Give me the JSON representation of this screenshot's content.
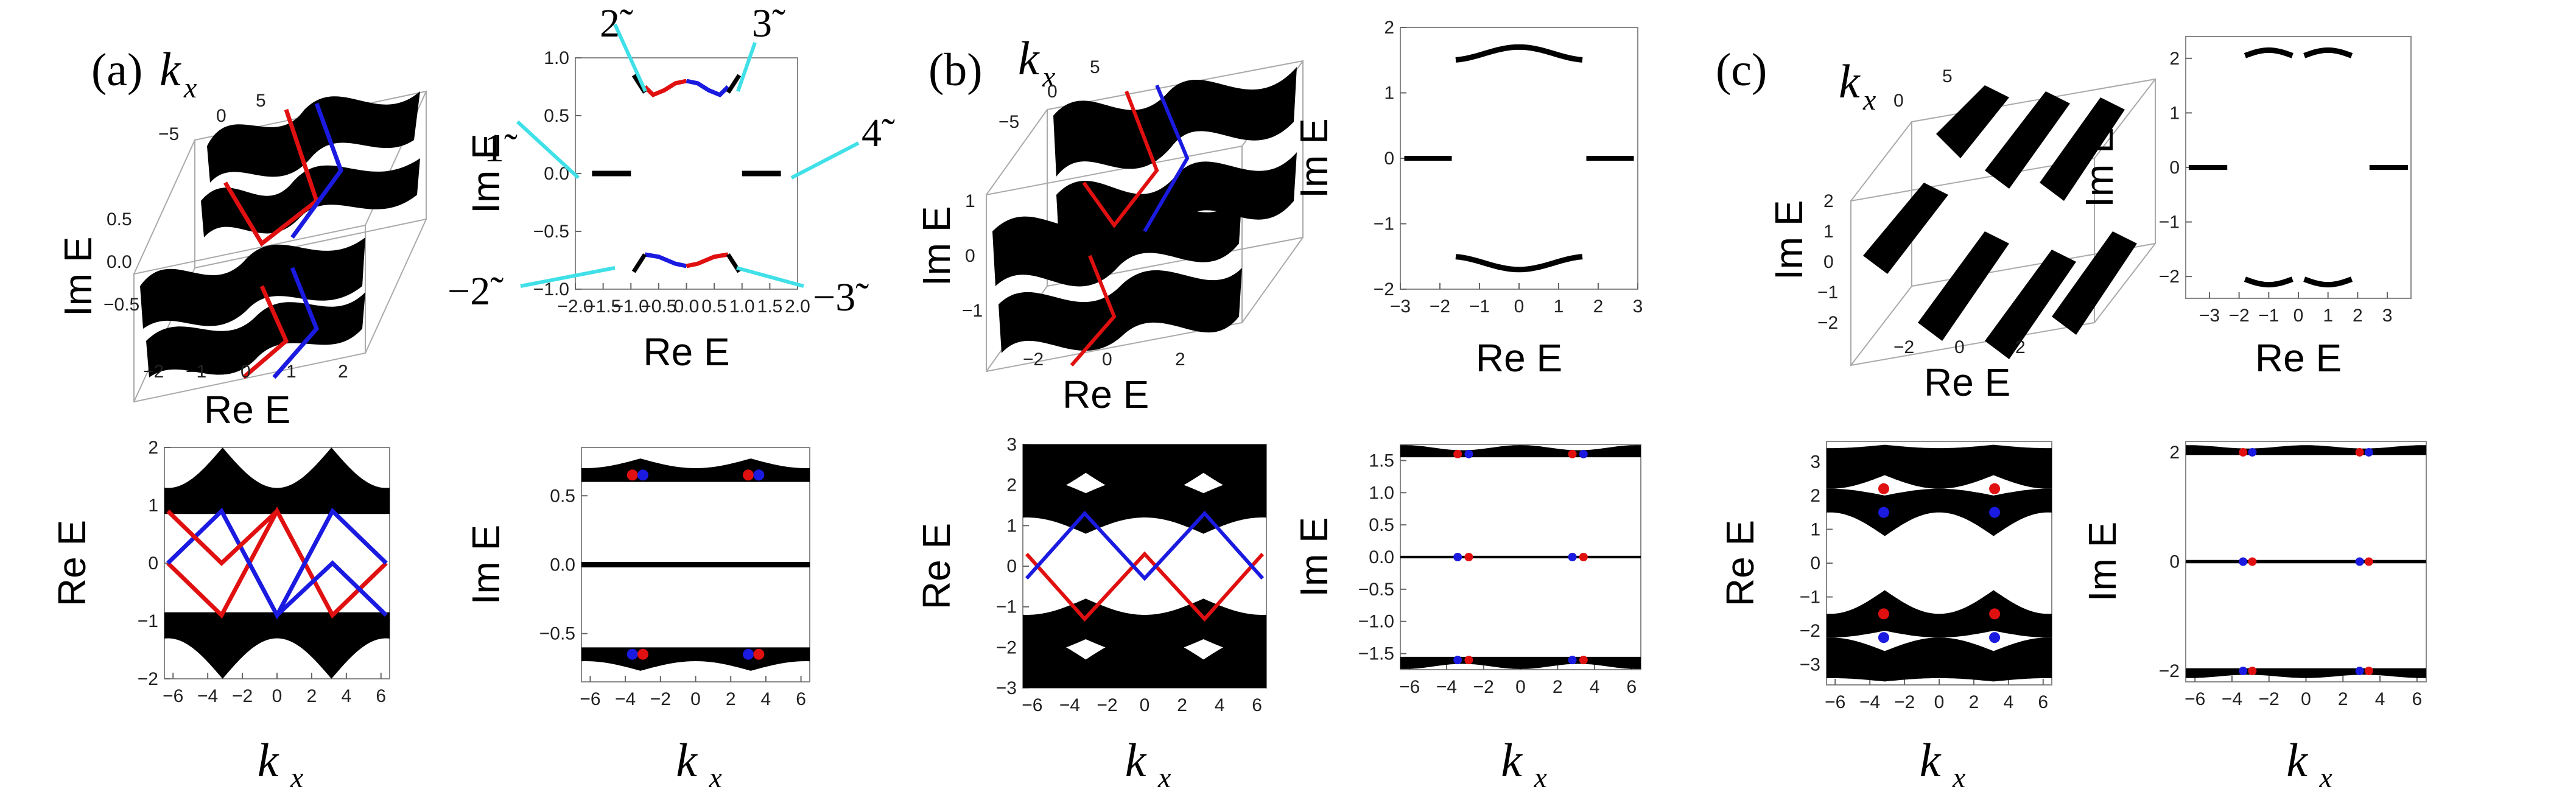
{
  "panels": {
    "a": {
      "label": "(a)",
      "kx_label": "k",
      "kx_sub": "x"
    },
    "b": {
      "label": "(b)",
      "kx_label": "k",
      "kx_sub": "x"
    },
    "c": {
      "label": "(c)",
      "kx_label": "k",
      "kx_sub": "x"
    }
  },
  "annotations": {
    "a2": {
      "l1": "1̃",
      "l2": "2̃",
      "l3": "3̃",
      "l4": "4̃",
      "lm2": "−2̃",
      "lm3": "−3̃"
    }
  },
  "colors": {
    "band": "#000000",
    "red_edge": "#e01010",
    "blue_edge": "#1a1ae0",
    "annotation_line": "#40e0e8"
  },
  "chart_data": [
    {
      "id": "a-3d",
      "type": "area",
      "view": "3d",
      "xlabel": "Re E",
      "ylabel": "Im E",
      "zlabel": "kx",
      "x_ticks": [
        "-2",
        "-1",
        "0",
        "1",
        "2"
      ],
      "y_ticks": [
        "-0.5",
        "0.0",
        "0.5"
      ],
      "z_ticks": [
        "-5",
        "0",
        "5"
      ]
    },
    {
      "id": "a-complex",
      "type": "scatter",
      "xlabel": "Re E",
      "ylabel": "Im E",
      "xlim": [
        -2,
        2
      ],
      "ylim": [
        -1,
        1
      ],
      "x_ticks": [
        -2,
        -1.5,
        -1,
        -0.5,
        0,
        0.5,
        1,
        1.5,
        2
      ],
      "x_tick_labels": [
        "−2.0",
        "−1.5",
        "−1.0",
        "−0.5",
        "0.0",
        "0.5",
        "1.0",
        "1.5",
        "2.0"
      ],
      "y_ticks": [
        -1,
        -0.5,
        0,
        0.5,
        1
      ],
      "y_tick_labels": [
        "−1.0",
        "−0.5",
        "0.0",
        "0.5",
        "1.0"
      ],
      "grid": false
    },
    {
      "id": "a-re",
      "type": "area",
      "xlabel": "k",
      "xlabel_sub": "x",
      "ylabel": "Re E",
      "xlim": [
        -6.5,
        6.5
      ],
      "ylim": [
        -2,
        2
      ],
      "x_ticks": [
        -6,
        -4,
        -2,
        0,
        2,
        4,
        6
      ],
      "x_tick_labels": [
        "−6",
        "−4",
        "−2",
        "0",
        "2",
        "4",
        "6"
      ],
      "y_ticks": [
        -2,
        -1,
        0,
        1,
        2
      ],
      "y_tick_labels": [
        "−2",
        "−1",
        "0",
        "1",
        "2"
      ],
      "grid": false
    },
    {
      "id": "a-im",
      "type": "area",
      "xlabel": "k",
      "xlabel_sub": "x",
      "ylabel": "Im E",
      "xlim": [
        -6.5,
        6.5
      ],
      "ylim": [
        -0.85,
        0.85
      ],
      "x_ticks": [
        -6,
        -4,
        -2,
        0,
        2,
        4,
        6
      ],
      "x_tick_labels": [
        "−6",
        "−4",
        "−2",
        "0",
        "2",
        "4",
        "6"
      ],
      "y_ticks": [
        -0.5,
        0,
        0.5
      ],
      "y_tick_labels": [
        "−0.5",
        "0.0",
        "0.5"
      ],
      "grid": false
    },
    {
      "id": "b-3d",
      "type": "area",
      "view": "3d",
      "xlabel": "Re E",
      "ylabel": "Im E",
      "zlabel": "kx",
      "x_ticks": [
        "-2",
        "0",
        "2"
      ],
      "y_ticks": [
        "-1",
        "0",
        "1"
      ],
      "z_ticks": [
        "-5",
        "0",
        "5"
      ]
    },
    {
      "id": "b-complex",
      "type": "scatter",
      "xlabel": "Re E",
      "ylabel": "Im E",
      "xlim": [
        -3,
        3
      ],
      "ylim": [
        -2,
        2
      ],
      "x_ticks": [
        -3,
        -2,
        -1,
        0,
        1,
        2,
        3
      ],
      "x_tick_labels": [
        "−3",
        "−2",
        "−1",
        "0",
        "1",
        "2",
        "3"
      ],
      "y_ticks": [
        -2,
        -1,
        0,
        1,
        2
      ],
      "y_tick_labels": [
        "−2",
        "−1",
        "0",
        "1",
        "2"
      ],
      "grid": false
    },
    {
      "id": "b-re",
      "type": "area",
      "xlabel": "k",
      "xlabel_sub": "x",
      "ylabel": "Re E",
      "xlim": [
        -6.5,
        6.5
      ],
      "ylim": [
        -3,
        3
      ],
      "x_ticks": [
        -6,
        -4,
        -2,
        0,
        2,
        4,
        6
      ],
      "x_tick_labels": [
        "−6",
        "−4",
        "−2",
        "0",
        "2",
        "4",
        "6"
      ],
      "y_ticks": [
        -3,
        -2,
        -1,
        0,
        1,
        2,
        3
      ],
      "y_tick_labels": [
        "−3",
        "−2",
        "−1",
        "0",
        "1",
        "2",
        "3"
      ],
      "grid": false
    },
    {
      "id": "b-im",
      "type": "area",
      "xlabel": "k",
      "xlabel_sub": "x",
      "ylabel": "Im E",
      "xlim": [
        -6.5,
        6.5
      ],
      "ylim": [
        -1.75,
        1.75
      ],
      "x_ticks": [
        -6,
        -4,
        -2,
        0,
        2,
        4,
        6
      ],
      "x_tick_labels": [
        "−6",
        "−4",
        "−2",
        "0",
        "2",
        "4",
        "6"
      ],
      "y_ticks": [
        -1.5,
        -1,
        -0.5,
        0,
        0.5,
        1,
        1.5
      ],
      "y_tick_labels": [
        "−1.5",
        "−1.0",
        "−0.5",
        "0.0",
        "0.5",
        "1.0",
        "1.5"
      ],
      "grid": false
    },
    {
      "id": "c-3d",
      "type": "area",
      "view": "3d",
      "xlabel": "Re E",
      "ylabel": "Im E",
      "zlabel": "kx",
      "x_ticks": [
        "-2",
        "0",
        "2"
      ],
      "y_ticks": [
        "-2",
        "-1",
        "0",
        "1",
        "2"
      ],
      "z_ticks": [
        "0",
        "5"
      ]
    },
    {
      "id": "c-complex",
      "type": "scatter",
      "xlabel": "Re E",
      "ylabel": "Im E",
      "xlim": [
        -3.8,
        3.8
      ],
      "ylim": [
        -2.4,
        2.4
      ],
      "x_ticks": [
        -3,
        -2,
        -1,
        0,
        1,
        2,
        3
      ],
      "x_tick_labels": [
        "−3",
        "−2",
        "−1",
        "0",
        "1",
        "2",
        "3"
      ],
      "y_ticks": [
        -2,
        -1,
        0,
        1,
        2
      ],
      "y_tick_labels": [
        "−2",
        "−1",
        "0",
        "1",
        "2"
      ],
      "grid": false
    },
    {
      "id": "c-re",
      "type": "area",
      "xlabel": "k",
      "xlabel_sub": "x",
      "ylabel": "Re E",
      "xlim": [
        -6.5,
        6.5
      ],
      "ylim": [
        -3.6,
        3.6
      ],
      "x_ticks": [
        -6,
        -4,
        -2,
        0,
        2,
        4,
        6
      ],
      "x_tick_labels": [
        "−6",
        "−4",
        "−2",
        "0",
        "2",
        "4",
        "6"
      ],
      "y_ticks": [
        -3,
        -2,
        -1,
        0,
        1,
        2,
        3
      ],
      "y_tick_labels": [
        "−3",
        "−2",
        "−1",
        "0",
        "1",
        "2",
        "3"
      ],
      "grid": false
    },
    {
      "id": "c-im",
      "type": "area",
      "xlabel": "k",
      "xlabel_sub": "x",
      "ylabel": "Im E",
      "xlim": [
        -6.5,
        6.5
      ],
      "ylim": [
        -2.2,
        2.2
      ],
      "x_ticks": [
        -6,
        -4,
        -2,
        0,
        2,
        4,
        6
      ],
      "x_tick_labels": [
        "−6",
        "−4",
        "−2",
        "0",
        "2",
        "4",
        "6"
      ],
      "y_ticks": [
        -2,
        0,
        2
      ],
      "y_tick_labels": [
        "−2",
        "0",
        "2"
      ],
      "grid": false
    }
  ]
}
